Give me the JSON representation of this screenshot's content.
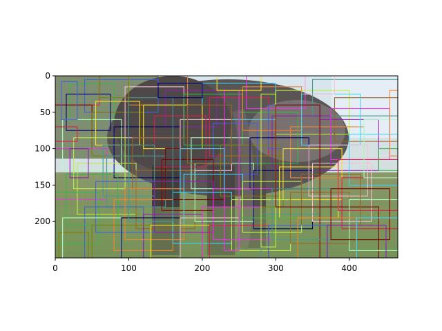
{
  "chart_data": {
    "type": "image",
    "xlim": [
      0,
      466
    ],
    "ylim": [
      250,
      0
    ],
    "xticks": [
      0,
      100,
      200,
      300,
      400
    ],
    "yticks": [
      0,
      50,
      100,
      150,
      200
    ],
    "xtick_labels": [
      "0",
      "100",
      "200",
      "300",
      "400"
    ],
    "ytick_labels": [
      "0",
      "50",
      "100",
      "150",
      "200"
    ],
    "xlabel": "",
    "ylabel": "",
    "title": "",
    "image_subject": "elephant-in-grassland-photo",
    "box_colors": [
      "#e6194b",
      "#3cb44b",
      "#4363d8",
      "#f58231",
      "#911eb4",
      "#42d4f4",
      "#f032e6",
      "#bfef45",
      "#469990",
      "#9a6324",
      "#800000",
      "#aaffc3",
      "#808000",
      "#000075",
      "#ffe119",
      "#fabed4"
    ],
    "boxes": [
      [
        0,
        0,
        60,
        40
      ],
      [
        20,
        10,
        80,
        60
      ],
      [
        40,
        5,
        140,
        50
      ],
      [
        100,
        0,
        180,
        40
      ],
      [
        150,
        20,
        220,
        70
      ],
      [
        200,
        10,
        300,
        60
      ],
      [
        260,
        0,
        340,
        45
      ],
      [
        300,
        20,
        400,
        80
      ],
      [
        350,
        5,
        466,
        55
      ],
      [
        380,
        30,
        466,
        90
      ],
      [
        0,
        40,
        50,
        100
      ],
      [
        10,
        60,
        90,
        130
      ],
      [
        50,
        50,
        120,
        110
      ],
      [
        80,
        70,
        170,
        140
      ],
      [
        120,
        40,
        200,
        100
      ],
      [
        170,
        60,
        240,
        130
      ],
      [
        210,
        30,
        290,
        110
      ],
      [
        250,
        50,
        330,
        120
      ],
      [
        290,
        40,
        360,
        100
      ],
      [
        320,
        70,
        420,
        140
      ],
      [
        360,
        60,
        440,
        130
      ],
      [
        400,
        80,
        466,
        150
      ],
      [
        0,
        100,
        70,
        170
      ],
      [
        30,
        120,
        110,
        190
      ],
      [
        70,
        110,
        150,
        180
      ],
      [
        110,
        130,
        190,
        210
      ],
      [
        150,
        100,
        230,
        170
      ],
      [
        190,
        120,
        270,
        200
      ],
      [
        230,
        110,
        310,
        180
      ],
      [
        270,
        130,
        350,
        210
      ],
      [
        310,
        100,
        390,
        170
      ],
      [
        350,
        120,
        430,
        200
      ],
      [
        390,
        140,
        466,
        210
      ],
      [
        0,
        160,
        60,
        230
      ],
      [
        40,
        180,
        120,
        250
      ],
      [
        80,
        170,
        160,
        240
      ],
      [
        120,
        190,
        200,
        250
      ],
      [
        160,
        160,
        240,
        230
      ],
      [
        200,
        180,
        280,
        250
      ],
      [
        240,
        170,
        320,
        240
      ],
      [
        280,
        190,
        360,
        250
      ],
      [
        320,
        160,
        400,
        230
      ],
      [
        360,
        180,
        440,
        250
      ],
      [
        400,
        170,
        466,
        240
      ],
      [
        5,
        215,
        45,
        250
      ],
      [
        15,
        25,
        75,
        75
      ],
      [
        55,
        35,
        115,
        95
      ],
      [
        95,
        15,
        175,
        85
      ],
      [
        135,
        55,
        205,
        125
      ],
      [
        175,
        25,
        255,
        95
      ],
      [
        215,
        65,
        275,
        135
      ],
      [
        255,
        15,
        335,
        75
      ],
      [
        295,
        55,
        375,
        125
      ],
      [
        335,
        25,
        415,
        95
      ],
      [
        375,
        45,
        455,
        115
      ],
      [
        25,
        85,
        95,
        155
      ],
      [
        65,
        95,
        135,
        165
      ],
      [
        105,
        85,
        185,
        155
      ],
      [
        145,
        115,
        215,
        185
      ],
      [
        185,
        85,
        265,
        155
      ],
      [
        225,
        95,
        305,
        165
      ],
      [
        265,
        85,
        345,
        155
      ],
      [
        305,
        125,
        385,
        195
      ],
      [
        345,
        95,
        425,
        165
      ],
      [
        385,
        115,
        466,
        185
      ],
      [
        15,
        135,
        85,
        205
      ],
      [
        55,
        145,
        135,
        215
      ],
      [
        95,
        155,
        175,
        225
      ],
      [
        135,
        145,
        215,
        215
      ],
      [
        175,
        135,
        255,
        205
      ],
      [
        215,
        155,
        295,
        225
      ],
      [
        255,
        145,
        335,
        215
      ],
      [
        295,
        155,
        375,
        225
      ],
      [
        335,
        135,
        415,
        205
      ],
      [
        375,
        155,
        455,
        225
      ],
      [
        10,
        195,
        90,
        250
      ],
      [
        50,
        205,
        130,
        250
      ],
      [
        90,
        195,
        170,
        250
      ],
      [
        130,
        205,
        210,
        250
      ],
      [
        170,
        195,
        250,
        250
      ],
      [
        210,
        205,
        290,
        250
      ],
      [
        250,
        195,
        330,
        250
      ],
      [
        290,
        205,
        370,
        250
      ],
      [
        330,
        195,
        410,
        250
      ],
      [
        370,
        205,
        450,
        250
      ],
      [
        410,
        195,
        466,
        250
      ],
      [
        230,
        20,
        250,
        240
      ],
      [
        280,
        25,
        300,
        235
      ],
      [
        100,
        30,
        160,
        200
      ],
      [
        180,
        40,
        240,
        120
      ],
      [
        300,
        40,
        360,
        180
      ],
      [
        420,
        60,
        466,
        140
      ],
      [
        60,
        0,
        100,
        30
      ],
      [
        140,
        10,
        200,
        30
      ],
      [
        220,
        0,
        280,
        20
      ],
      [
        340,
        0,
        380,
        25
      ],
      [
        0,
        70,
        30,
        90
      ],
      [
        440,
        100,
        466,
        130
      ],
      [
        8,
        8,
        30,
        60
      ],
      [
        455,
        20,
        466,
        110
      ],
      [
        20,
        100,
        45,
        140
      ],
      [
        170,
        100,
        230,
        160
      ]
    ]
  }
}
